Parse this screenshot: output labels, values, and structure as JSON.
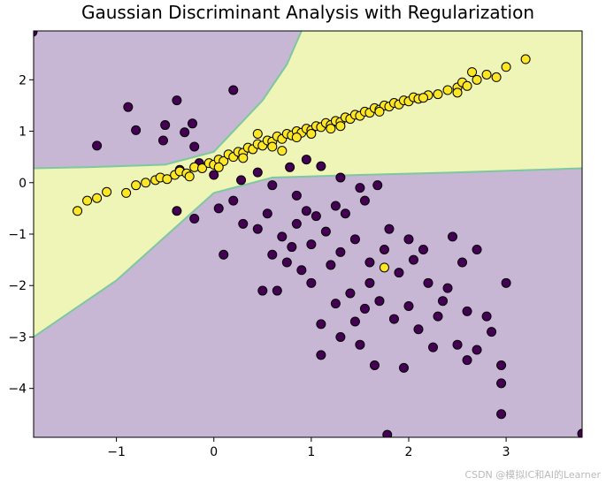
{
  "chart_data": {
    "type": "scatter",
    "title": "Gaussian Discriminant Analysis with Regularization",
    "xlabel": "",
    "ylabel": "",
    "xlim": [
      -1.85,
      3.78
    ],
    "ylim": [
      -4.95,
      2.95
    ],
    "xticks": [
      -1,
      0,
      1,
      2,
      3
    ],
    "yticks": [
      2,
      1,
      0,
      -1,
      -2,
      -3,
      -4
    ],
    "grid": false,
    "legend": "none",
    "colors": {
      "region_class0": "#c7b7d4",
      "region_class1": "#eef5b6",
      "boundary": "#7ec8a0",
      "class0_point": "#440154",
      "class1_point": "#fde725",
      "point_edge": "#000000"
    },
    "decision_boundary": {
      "upper_wedge": [
        [
          -1.85,
          0.28
        ],
        [
          -1.3,
          0.3
        ],
        [
          -0.5,
          0.35
        ],
        [
          0.0,
          0.6
        ],
        [
          0.5,
          1.6
        ],
        [
          0.75,
          2.3
        ],
        [
          0.9,
          2.95
        ]
      ],
      "lower_wedge": [
        [
          -1.85,
          -3.0
        ],
        [
          -1.0,
          -1.9
        ],
        [
          -0.5,
          -1.05
        ],
        [
          0.0,
          -0.2
        ],
        [
          0.6,
          0.1
        ],
        [
          1.5,
          0.15
        ],
        [
          2.5,
          0.2
        ],
        [
          3.78,
          0.28
        ]
      ]
    },
    "series": [
      {
        "class": 0,
        "points": [
          [
            -1.2,
            0.72
          ],
          [
            -0.88,
            1.47
          ],
          [
            -0.8,
            1.02
          ],
          [
            -0.5,
            1.12
          ],
          [
            -0.38,
            1.6
          ],
          [
            -0.22,
            1.15
          ],
          [
            -0.52,
            0.82
          ],
          [
            -0.3,
            0.98
          ],
          [
            -0.2,
            0.7
          ],
          [
            0.2,
            1.8
          ],
          [
            -0.35,
            0.25
          ],
          [
            -0.15,
            0.38
          ],
          [
            0.0,
            0.15
          ],
          [
            0.28,
            0.05
          ],
          [
            0.45,
            0.2
          ],
          [
            0.6,
            -0.05
          ],
          [
            0.78,
            0.3
          ],
          [
            0.95,
            0.45
          ],
          [
            1.1,
            0.32
          ],
          [
            1.3,
            0.1
          ],
          [
            1.5,
            -0.1
          ],
          [
            1.68,
            -0.05
          ],
          [
            -0.38,
            -0.55
          ],
          [
            -0.2,
            -0.7
          ],
          [
            0.05,
            -0.5
          ],
          [
            0.2,
            -0.35
          ],
          [
            0.3,
            -0.8
          ],
          [
            0.45,
            -0.9
          ],
          [
            0.55,
            -0.6
          ],
          [
            0.7,
            -1.05
          ],
          [
            0.85,
            -0.8
          ],
          [
            1.0,
            -1.2
          ],
          [
            1.15,
            -0.95
          ],
          [
            1.3,
            -1.35
          ],
          [
            1.45,
            -1.1
          ],
          [
            1.6,
            -1.55
          ],
          [
            1.75,
            -1.3
          ],
          [
            1.9,
            -1.75
          ],
          [
            2.05,
            -1.5
          ],
          [
            2.2,
            -1.95
          ],
          [
            0.1,
            -1.4
          ],
          [
            0.5,
            -2.1
          ],
          [
            0.65,
            -2.1
          ],
          [
            0.9,
            -1.7
          ],
          [
            1.0,
            -1.95
          ],
          [
            1.25,
            -2.35
          ],
          [
            1.4,
            -2.15
          ],
          [
            1.55,
            -2.45
          ],
          [
            1.7,
            -2.3
          ],
          [
            1.85,
            -2.65
          ],
          [
            2.0,
            -2.4
          ],
          [
            2.1,
            -2.85
          ],
          [
            2.3,
            -2.6
          ],
          [
            2.4,
            -2.05
          ],
          [
            2.5,
            -3.15
          ],
          [
            2.6,
            -2.5
          ],
          [
            2.7,
            -3.25
          ],
          [
            2.85,
            -2.9
          ],
          [
            2.6,
            -3.45
          ],
          [
            2.8,
            -2.6
          ],
          [
            1.3,
            -3.0
          ],
          [
            1.5,
            -3.15
          ],
          [
            1.65,
            -3.55
          ],
          [
            1.95,
            -3.6
          ],
          [
            2.25,
            -3.2
          ],
          [
            1.1,
            -3.35
          ],
          [
            2.95,
            -3.55
          ],
          [
            2.95,
            -3.9
          ],
          [
            2.95,
            -4.5
          ],
          [
            1.78,
            -4.9
          ],
          [
            3.78,
            -4.88
          ],
          [
            2.7,
            -1.3
          ],
          [
            2.55,
            -1.55
          ],
          [
            3.0,
            -1.95
          ],
          [
            1.55,
            -0.35
          ],
          [
            1.35,
            -0.6
          ],
          [
            0.85,
            -0.25
          ],
          [
            1.25,
            -0.45
          ],
          [
            1.6,
            -1.95
          ],
          [
            2.15,
            -1.3
          ],
          [
            1.8,
            -0.9
          ],
          [
            2.0,
            -1.1
          ],
          [
            2.45,
            -1.05
          ],
          [
            1.2,
            -1.6
          ],
          [
            0.95,
            -0.55
          ],
          [
            0.6,
            -1.4
          ],
          [
            0.75,
            -1.55
          ],
          [
            1.45,
            -2.7
          ],
          [
            1.1,
            -2.75
          ],
          [
            0.8,
            -1.25
          ],
          [
            1.05,
            -0.65
          ],
          [
            2.35,
            -2.3
          ],
          [
            -1.86,
            2.93
          ]
        ]
      },
      {
        "class": 1,
        "points": [
          [
            -1.4,
            -0.55
          ],
          [
            -1.3,
            -0.35
          ],
          [
            -1.2,
            -0.3
          ],
          [
            -1.1,
            -0.18
          ],
          [
            -0.9,
            -0.2
          ],
          [
            -0.8,
            -0.05
          ],
          [
            -0.7,
            0.0
          ],
          [
            -0.6,
            0.05
          ],
          [
            -0.55,
            0.1
          ],
          [
            -0.48,
            0.07
          ],
          [
            -0.4,
            0.15
          ],
          [
            -0.35,
            0.22
          ],
          [
            -0.28,
            0.18
          ],
          [
            -0.2,
            0.3
          ],
          [
            -0.12,
            0.28
          ],
          [
            -0.05,
            0.38
          ],
          [
            0.0,
            0.35
          ],
          [
            0.05,
            0.45
          ],
          [
            0.1,
            0.42
          ],
          [
            0.15,
            0.55
          ],
          [
            0.2,
            0.5
          ],
          [
            0.25,
            0.6
          ],
          [
            0.3,
            0.58
          ],
          [
            0.35,
            0.68
          ],
          [
            0.4,
            0.65
          ],
          [
            0.45,
            0.75
          ],
          [
            0.5,
            0.72
          ],
          [
            0.55,
            0.82
          ],
          [
            0.6,
            0.8
          ],
          [
            0.65,
            0.9
          ],
          [
            0.7,
            0.85
          ],
          [
            0.75,
            0.95
          ],
          [
            0.8,
            0.92
          ],
          [
            0.85,
            1.0
          ],
          [
            0.9,
            0.97
          ],
          [
            0.95,
            1.05
          ],
          [
            1.0,
            1.02
          ],
          [
            1.05,
            1.1
          ],
          [
            1.1,
            1.08
          ],
          [
            1.15,
            1.16
          ],
          [
            1.2,
            1.12
          ],
          [
            1.25,
            1.2
          ],
          [
            1.3,
            1.18
          ],
          [
            1.35,
            1.27
          ],
          [
            1.4,
            1.24
          ],
          [
            1.45,
            1.32
          ],
          [
            1.5,
            1.3
          ],
          [
            1.55,
            1.38
          ],
          [
            1.6,
            1.36
          ],
          [
            1.65,
            1.45
          ],
          [
            1.7,
            1.42
          ],
          [
            1.75,
            1.5
          ],
          [
            1.8,
            1.48
          ],
          [
            1.85,
            1.55
          ],
          [
            1.9,
            1.52
          ],
          [
            1.95,
            1.6
          ],
          [
            2.0,
            1.58
          ],
          [
            2.05,
            1.66
          ],
          [
            2.1,
            1.63
          ],
          [
            2.2,
            1.7
          ],
          [
            2.3,
            1.72
          ],
          [
            2.4,
            1.8
          ],
          [
            2.5,
            1.85
          ],
          [
            2.55,
            1.95
          ],
          [
            2.6,
            1.88
          ],
          [
            2.7,
            2.0
          ],
          [
            2.65,
            2.15
          ],
          [
            2.8,
            2.1
          ],
          [
            2.9,
            2.05
          ],
          [
            3.0,
            2.25
          ],
          [
            3.2,
            2.4
          ],
          [
            2.5,
            1.75
          ],
          [
            1.0,
            0.95
          ],
          [
            1.2,
            1.05
          ],
          [
            0.6,
            0.7
          ],
          [
            0.3,
            0.48
          ],
          [
            0.05,
            0.3
          ],
          [
            -0.25,
            0.12
          ],
          [
            0.85,
            0.88
          ],
          [
            1.7,
            1.38
          ],
          [
            1.3,
            1.1
          ],
          [
            2.15,
            1.65
          ],
          [
            1.75,
            -1.65
          ],
          [
            0.45,
            0.95
          ],
          [
            0.7,
            0.62
          ]
        ]
      }
    ]
  }
}
